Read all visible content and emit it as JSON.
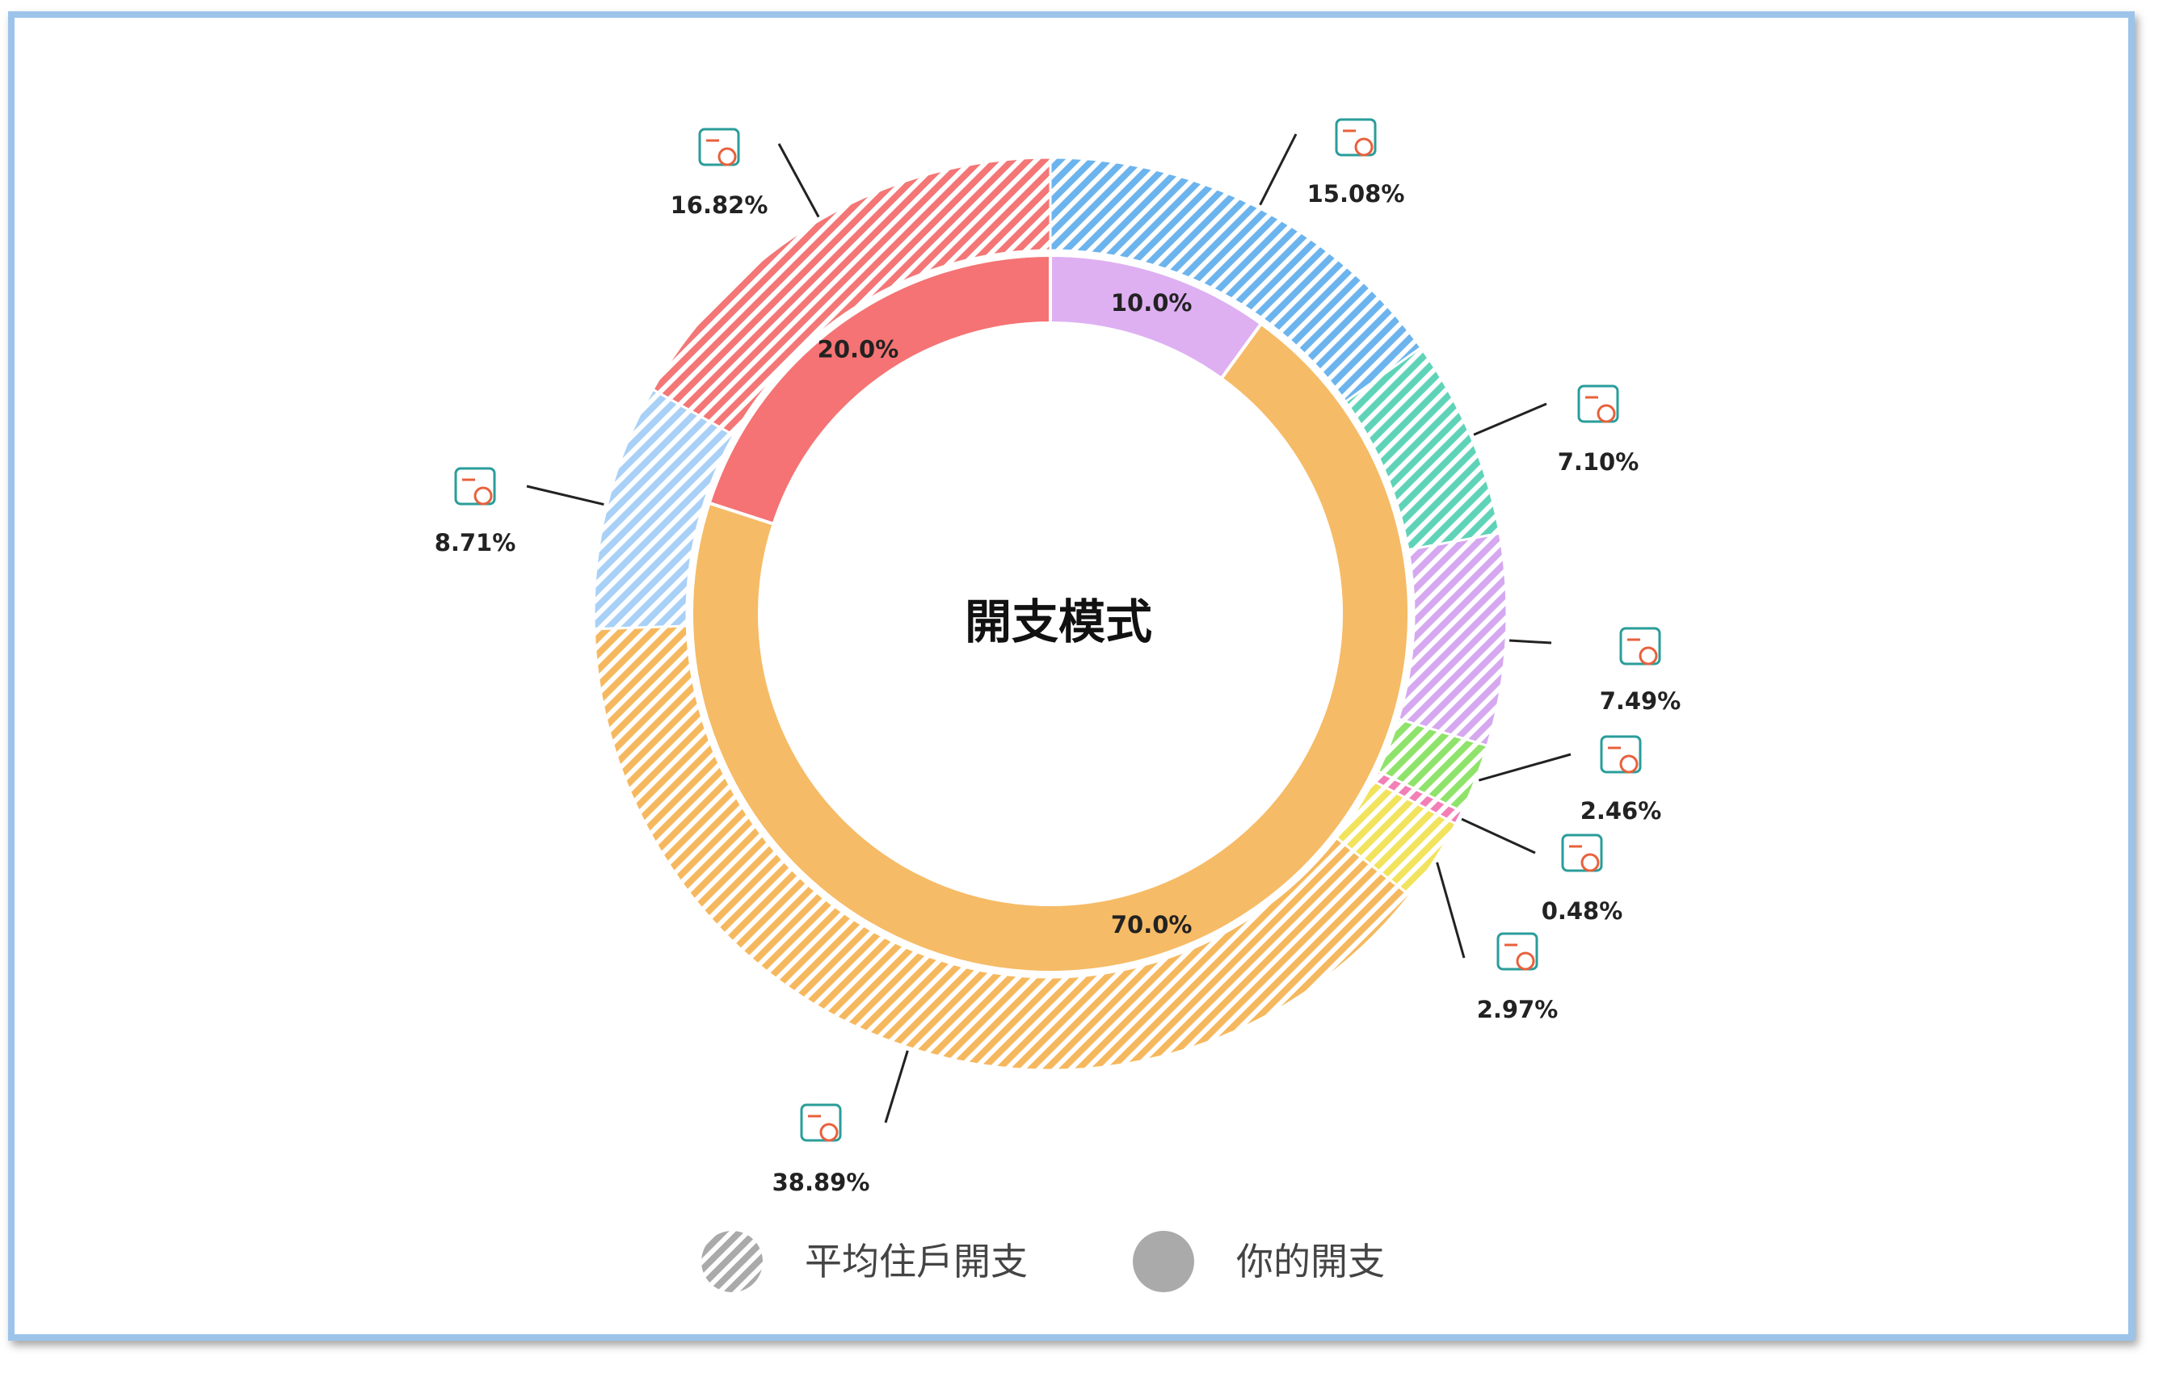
{
  "chart_data": {
    "type": "donut",
    "title": "開支模式",
    "outer_series": {
      "name": "平均住戶開支",
      "values": [
        15.08,
        7.1,
        7.49,
        2.46,
        0.48,
        2.97,
        38.89,
        8.71,
        16.82
      ],
      "labels": [
        "15.08%",
        "7.10%",
        "7.49%",
        "2.46%",
        "0.48%",
        "2.97%",
        "38.89%",
        "8.71%",
        "16.82%"
      ],
      "colors": [
        "#6cb4ee",
        "#5fd3b8",
        "#d6a8f0",
        "#8fe36a",
        "#f27fb6",
        "#f2e35c",
        "#f6b85e",
        "#a9d1f7",
        "#f47676"
      ],
      "icons": [
        "education-medical-wifi-icon",
        "laundry-bag-icon",
        "travel-transport-icon",
        "clothing-shoes-icon",
        "alcohol-tobacco-icon",
        "fuel-utilities-icon",
        "housing-cost-icon",
        "grocery-basket-icon",
        "dining-meals-icon"
      ]
    },
    "inner_series": {
      "name": "你的開支",
      "values": [
        10.0,
        70.0,
        20.0
      ],
      "labels": [
        "10.0%",
        "70.0%",
        "20.0%"
      ],
      "colors": [
        "#deb0f2",
        "#f6bb66",
        "#f57374"
      ]
    },
    "legend": {
      "position": "bottom",
      "items": [
        "平均住戶開支",
        "你的開支"
      ]
    }
  }
}
